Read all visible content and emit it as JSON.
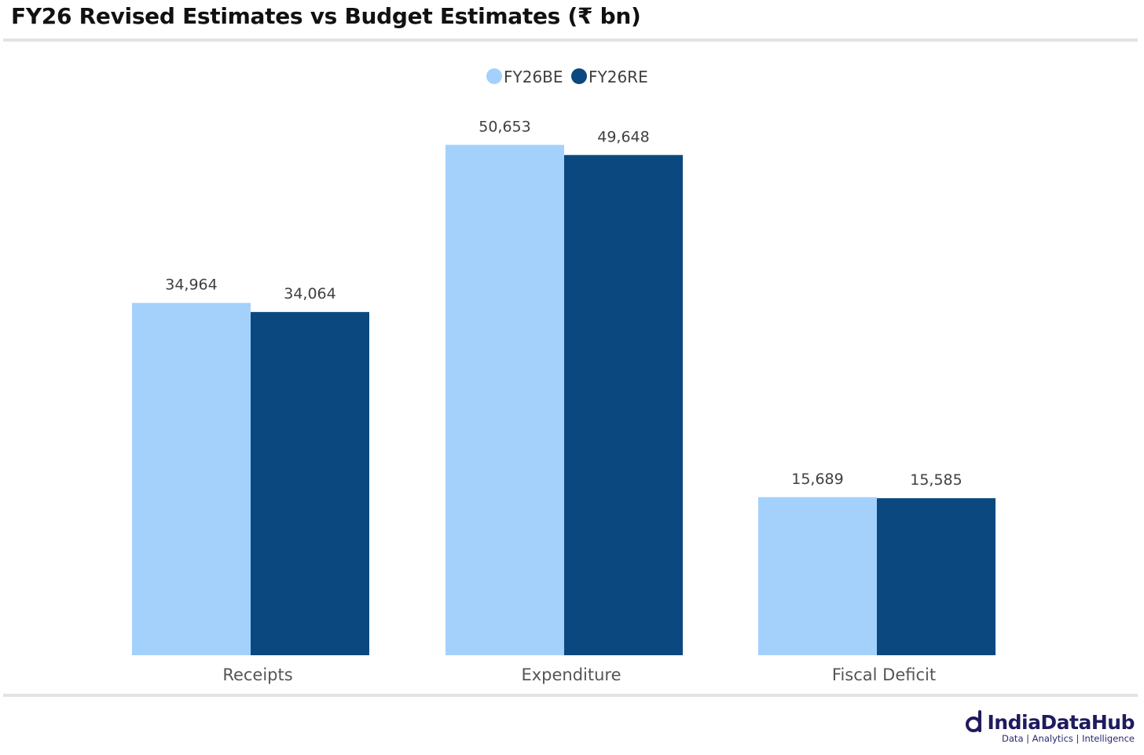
{
  "title": "FY26 Revised Estimates vs Budget Estimates (₹ bn)",
  "brand": {
    "name": "IndiaDataHub",
    "tagline": "Data | Analytics | Intelligence"
  },
  "chart_data": {
    "type": "bar",
    "title": "FY26 Revised Estimates vs Budget Estimates (₹ bn)",
    "categories": [
      "Receipts",
      "Expenditure",
      "Fiscal Deficit"
    ],
    "series": [
      {
        "name": "FY26BE",
        "color": "#a3d1fc",
        "values": [
          34964,
          50653,
          15689
        ],
        "labels": [
          "34,964",
          "50,653",
          "15,689"
        ]
      },
      {
        "name": "FY26RE",
        "color": "#0b487f",
        "values": [
          34064,
          49648,
          15585
        ],
        "labels": [
          "34,064",
          "49,648",
          "15,585"
        ]
      }
    ],
    "xlabel": "",
    "ylabel": "",
    "ylim": [
      0,
      57000
    ],
    "grid": false,
    "legend": "top-center"
  }
}
